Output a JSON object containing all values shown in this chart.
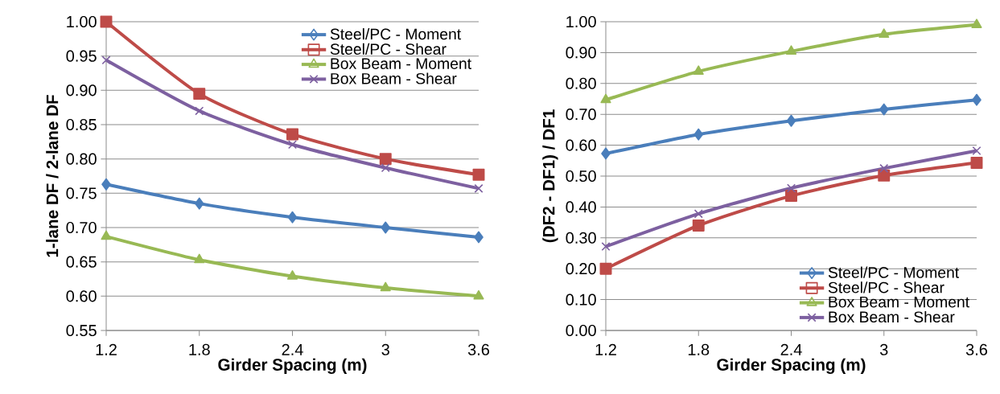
{
  "chart_data": [
    {
      "type": "line",
      "xlabel": "Girder Spacing (m)",
      "ylabel": "1-lane DF / 2-lane DF",
      "x": [
        1.2,
        1.8,
        2.4,
        3,
        3.6
      ],
      "xlim": [
        1.2,
        3.6
      ],
      "xticks": [
        1.2,
        1.8,
        2.4,
        3,
        3.6
      ],
      "ylim": [
        0.55,
        1.0
      ],
      "yticks": [
        {
          "value": 0.55,
          "label": "0.55"
        },
        {
          "value": 0.6,
          "label": "0.60"
        },
        {
          "value": 0.65,
          "label": "0.65"
        },
        {
          "value": 0.7,
          "label": "0.70"
        },
        {
          "value": 0.75,
          "label": "0.75"
        },
        {
          "value": 0.8,
          "label": "0.80"
        },
        {
          "value": 0.85,
          "label": "0.85"
        },
        {
          "value": 0.9,
          "label": "0.90"
        },
        {
          "value": 0.95,
          "label": "0.95"
        },
        {
          "value": 1.0,
          "label": "1.00"
        }
      ],
      "grid": "y",
      "legend": "top right",
      "series": [
        {
          "name": "Steel/PC - Moment",
          "color": "#4a7ebb",
          "marker": "diamond",
          "values": [
            0.763,
            0.735,
            0.715,
            0.7,
            0.686
          ]
        },
        {
          "name": "Steel/PC - Shear",
          "color": "#be4b48",
          "marker": "square",
          "values": [
            1.0,
            0.895,
            0.836,
            0.8,
            0.777
          ]
        },
        {
          "name": "Box Beam - Moment",
          "color": "#98b954",
          "marker": "triangle",
          "values": [
            0.687,
            0.653,
            0.629,
            0.612,
            0.6
          ]
        },
        {
          "name": "Box Beam - Shear",
          "color": "#7d60a0",
          "marker": "cross",
          "values": [
            0.944,
            0.87,
            0.821,
            0.787,
            0.757
          ]
        }
      ]
    },
    {
      "type": "line",
      "xlabel": "Girder Spacing (m)",
      "ylabel": "(DF2 - DF1) / DF1",
      "x": [
        1.2,
        1.8,
        2.4,
        3,
        3.6
      ],
      "xlim": [
        1.2,
        3.6
      ],
      "xticks": [
        1.2,
        1.8,
        2.4,
        3,
        3.6
      ],
      "ylim": [
        0.0,
        1.0
      ],
      "yticks": [
        {
          "value": 0.0,
          "label": "0.00"
        },
        {
          "value": 0.1,
          "label": "0.10"
        },
        {
          "value": 0.2,
          "label": "0.20"
        },
        {
          "value": 0.3,
          "label": "0.30"
        },
        {
          "value": 0.4,
          "label": "0.40"
        },
        {
          "value": 0.5,
          "label": "0.50"
        },
        {
          "value": 0.6,
          "label": "0.60"
        },
        {
          "value": 0.7,
          "label": "0.70"
        },
        {
          "value": 0.8,
          "label": "0.80"
        },
        {
          "value": 0.9,
          "label": "0.90"
        },
        {
          "value": 1.0,
          "label": "1.00"
        }
      ],
      "grid": "y",
      "legend": "bottom right",
      "series": [
        {
          "name": "Steel/PC - Moment",
          "color": "#4a7ebb",
          "marker": "diamond",
          "values": [
            0.573,
            0.635,
            0.679,
            0.716,
            0.747
          ]
        },
        {
          "name": "Steel/PC - Shear",
          "color": "#be4b48",
          "marker": "square",
          "values": [
            0.2,
            0.34,
            0.436,
            0.502,
            0.543
          ]
        },
        {
          "name": "Box Beam - Moment",
          "color": "#98b954",
          "marker": "triangle",
          "values": [
            0.747,
            0.839,
            0.904,
            0.959,
            0.99
          ]
        },
        {
          "name": "Box Beam - Shear",
          "color": "#7d60a0",
          "marker": "cross",
          "values": [
            0.272,
            0.378,
            0.461,
            0.525,
            0.582
          ]
        }
      ]
    }
  ]
}
